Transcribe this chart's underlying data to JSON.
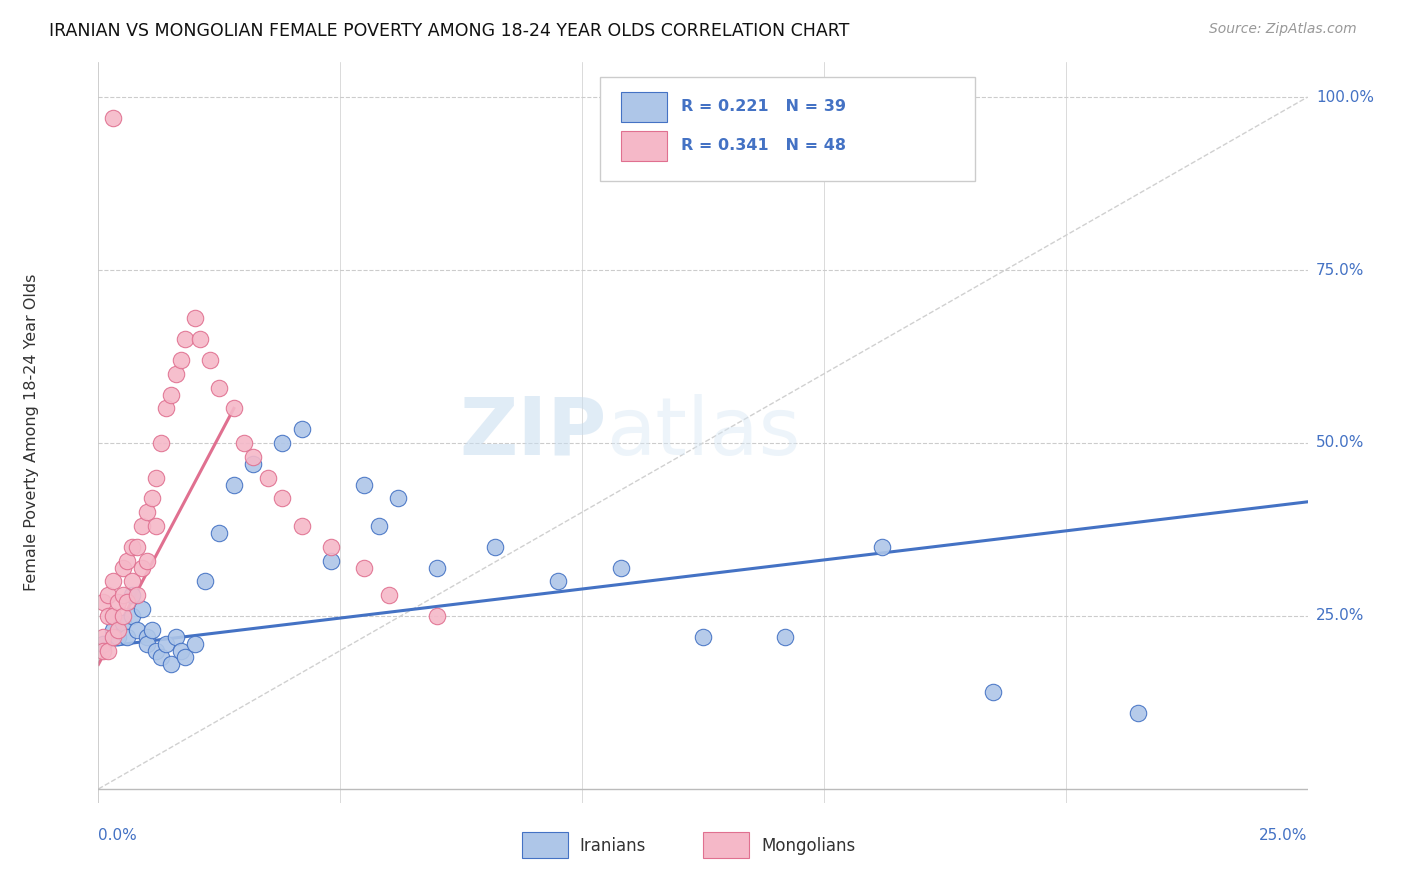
{
  "title": "IRANIAN VS MONGOLIAN FEMALE POVERTY AMONG 18-24 YEAR OLDS CORRELATION CHART",
  "source": "Source: ZipAtlas.com",
  "ylabel": "Female Poverty Among 18-24 Year Olds",
  "x_range": [
    0.0,
    0.25
  ],
  "y_range": [
    -0.02,
    1.05
  ],
  "watermark_zip": "ZIP",
  "watermark_atlas": "atlas",
  "blue_fill": "#aec6e8",
  "blue_edge": "#4472c4",
  "pink_fill": "#f5b8c8",
  "pink_edge": "#e07090",
  "blue_line_color": "#4472c4",
  "pink_line_color": "#e07090",
  "axis_label_color": "#4472c4",
  "grid_color": "#cccccc",
  "iranians_x": [
    0.001,
    0.003,
    0.004,
    0.005,
    0.006,
    0.007,
    0.007,
    0.008,
    0.009,
    0.01,
    0.01,
    0.011,
    0.012,
    0.013,
    0.014,
    0.015,
    0.016,
    0.017,
    0.018,
    0.02,
    0.022,
    0.025,
    0.028,
    0.032,
    0.038,
    0.042,
    0.048,
    0.055,
    0.058,
    0.062,
    0.07,
    0.082,
    0.095,
    0.108,
    0.125,
    0.142,
    0.162,
    0.185,
    0.215
  ],
  "iranians_y": [
    0.21,
    0.23,
    0.22,
    0.24,
    0.22,
    0.25,
    0.28,
    0.23,
    0.26,
    0.22,
    0.21,
    0.23,
    0.2,
    0.19,
    0.21,
    0.18,
    0.22,
    0.2,
    0.19,
    0.21,
    0.3,
    0.37,
    0.44,
    0.47,
    0.5,
    0.52,
    0.33,
    0.44,
    0.38,
    0.42,
    0.32,
    0.35,
    0.3,
    0.32,
    0.22,
    0.22,
    0.35,
    0.14,
    0.11
  ],
  "mongolians_x": [
    0.001,
    0.001,
    0.001,
    0.002,
    0.002,
    0.002,
    0.003,
    0.003,
    0.003,
    0.004,
    0.004,
    0.005,
    0.005,
    0.005,
    0.006,
    0.006,
    0.007,
    0.007,
    0.008,
    0.008,
    0.009,
    0.009,
    0.01,
    0.01,
    0.011,
    0.012,
    0.012,
    0.013,
    0.014,
    0.015,
    0.016,
    0.017,
    0.018,
    0.02,
    0.021,
    0.023,
    0.025,
    0.028,
    0.03,
    0.032,
    0.035,
    0.038,
    0.042,
    0.048,
    0.055,
    0.06,
    0.07,
    0.003
  ],
  "mongolians_y": [
    0.27,
    0.22,
    0.2,
    0.28,
    0.25,
    0.2,
    0.3,
    0.25,
    0.22,
    0.27,
    0.23,
    0.32,
    0.28,
    0.25,
    0.33,
    0.27,
    0.35,
    0.3,
    0.35,
    0.28,
    0.38,
    0.32,
    0.4,
    0.33,
    0.42,
    0.45,
    0.38,
    0.5,
    0.55,
    0.57,
    0.6,
    0.62,
    0.65,
    0.68,
    0.65,
    0.62,
    0.58,
    0.55,
    0.5,
    0.48,
    0.45,
    0.42,
    0.38,
    0.35,
    0.32,
    0.28,
    0.25,
    0.97
  ],
  "blue_trend_x": [
    0.0,
    0.25
  ],
  "blue_trend_y": [
    0.205,
    0.415
  ],
  "pink_trend_x": [
    0.0,
    0.028
  ],
  "pink_trend_y": [
    0.18,
    0.55
  ]
}
